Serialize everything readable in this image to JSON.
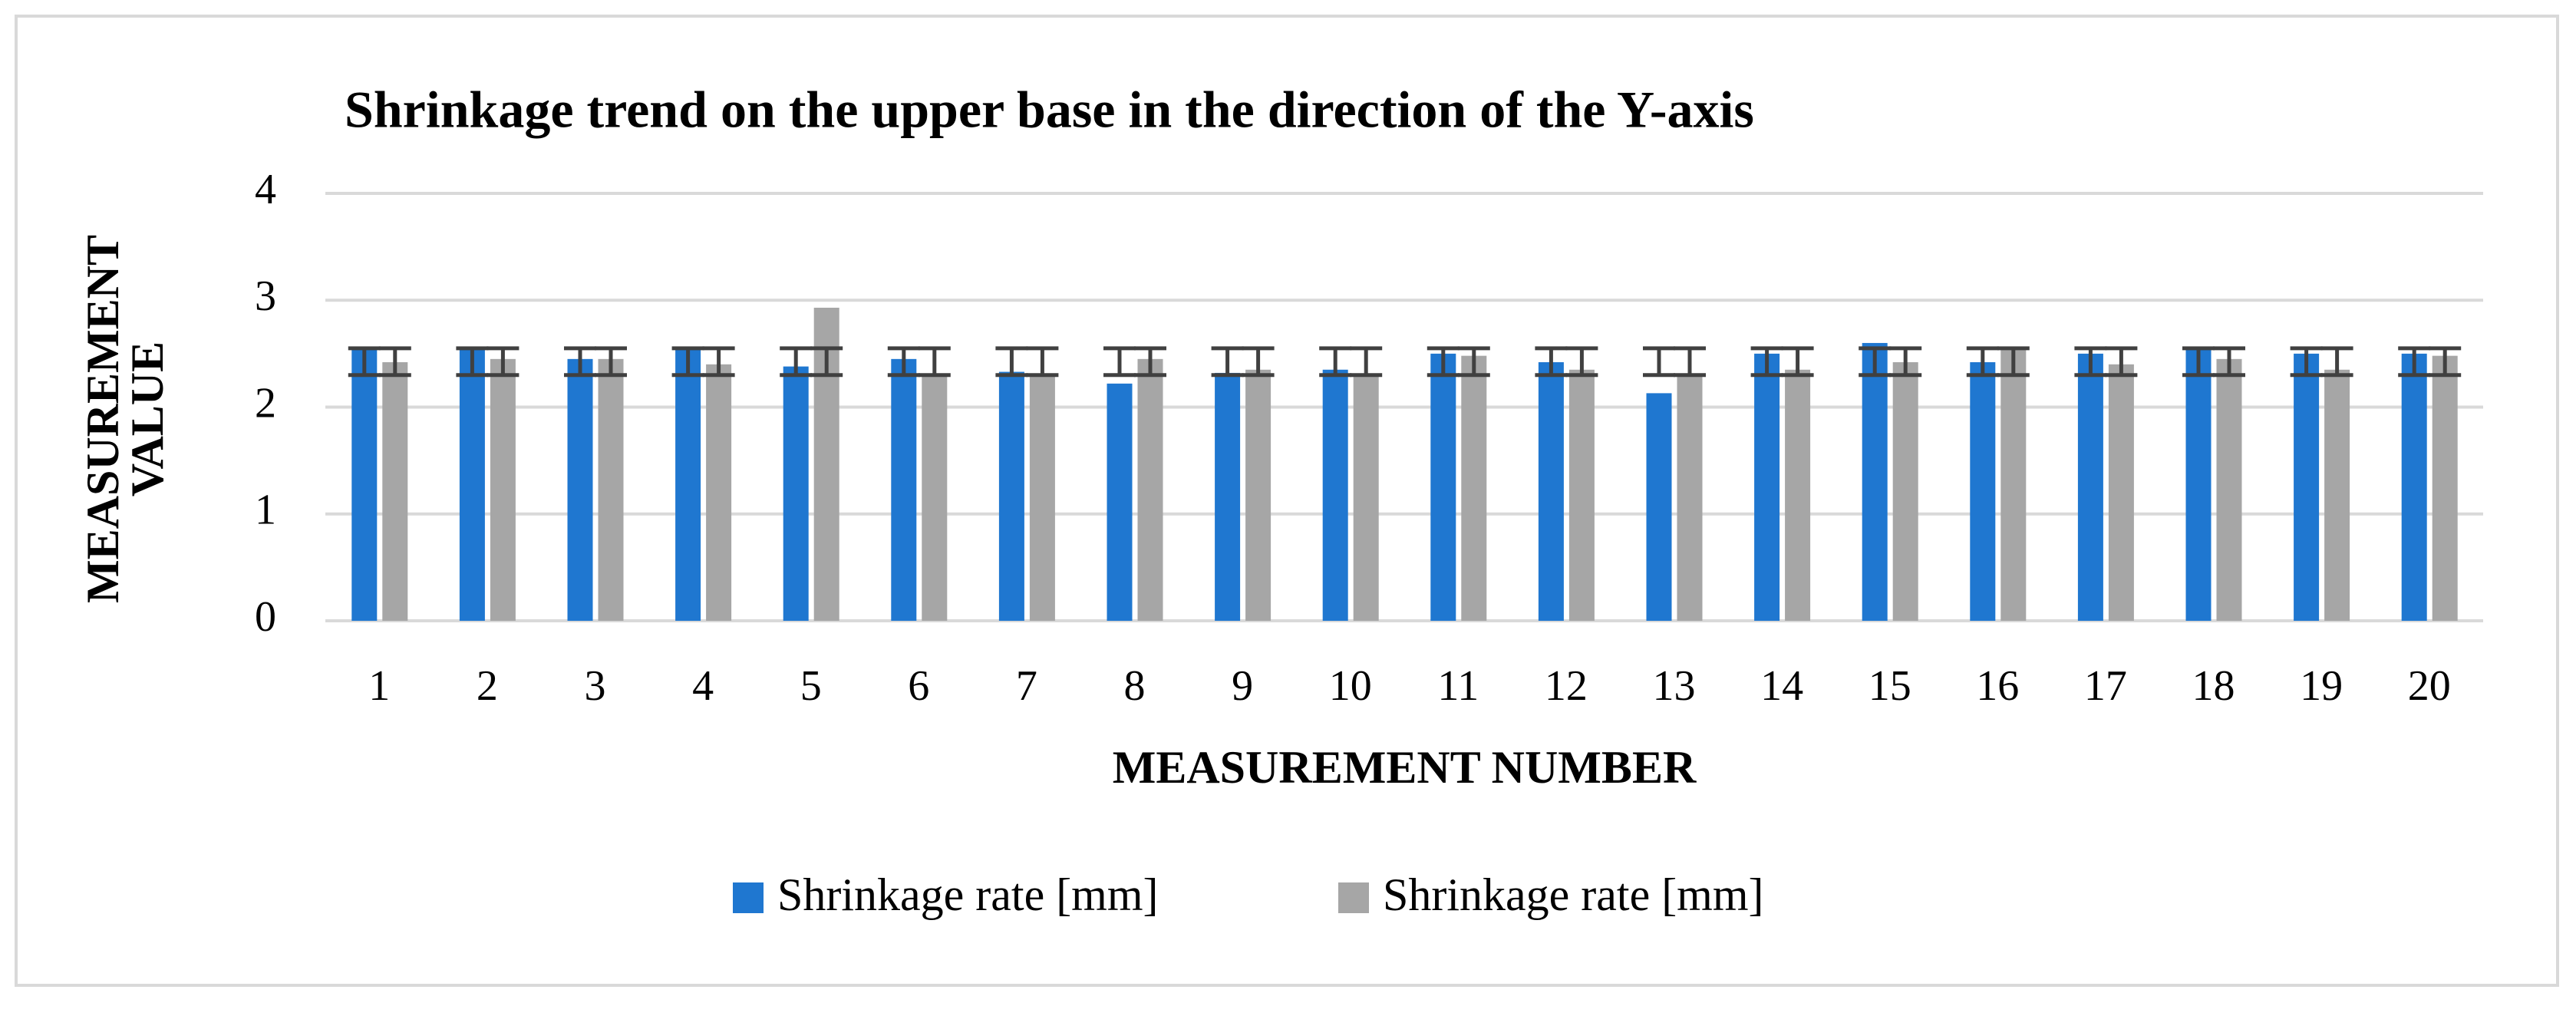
{
  "chart_data": {
    "type": "bar",
    "title": "Shrinkage trend on the upper base in the direction of the Y-axis",
    "x_label": "MEASUREMENT NUMBER",
    "y_label": "MEASUREMENT VALUE",
    "categories": [
      "1",
      "2",
      "3",
      "4",
      "5",
      "6",
      "7",
      "8",
      "9",
      "10",
      "11",
      "12",
      "13",
      "14",
      "15",
      "16",
      "17",
      "18",
      "19",
      "20"
    ],
    "series": [
      {
        "name": "Shrinkage rate [mm]",
        "color": "#1f77d0",
        "values": [
          2.55,
          2.55,
          2.45,
          2.55,
          2.38,
          2.45,
          2.33,
          2.22,
          2.32,
          2.35,
          2.5,
          2.42,
          2.13,
          2.5,
          2.6,
          2.42,
          2.5,
          2.55,
          2.5,
          2.5
        ],
        "error_range": [
          2.3,
          2.55
        ]
      },
      {
        "name": "Shrinkage rate [mm]",
        "color": "#a6a6a6",
        "values": [
          2.42,
          2.45,
          2.45,
          2.4,
          2.93,
          2.3,
          2.3,
          2.45,
          2.35,
          2.3,
          2.48,
          2.35,
          2.3,
          2.35,
          2.42,
          2.55,
          2.4,
          2.45,
          2.35,
          2.48
        ],
        "error_range": [
          2.3,
          2.55
        ]
      }
    ],
    "ylim": [
      0,
      4
    ],
    "yticks": [
      0,
      1,
      2,
      3,
      4
    ],
    "grid": true,
    "legend": "bottom"
  }
}
